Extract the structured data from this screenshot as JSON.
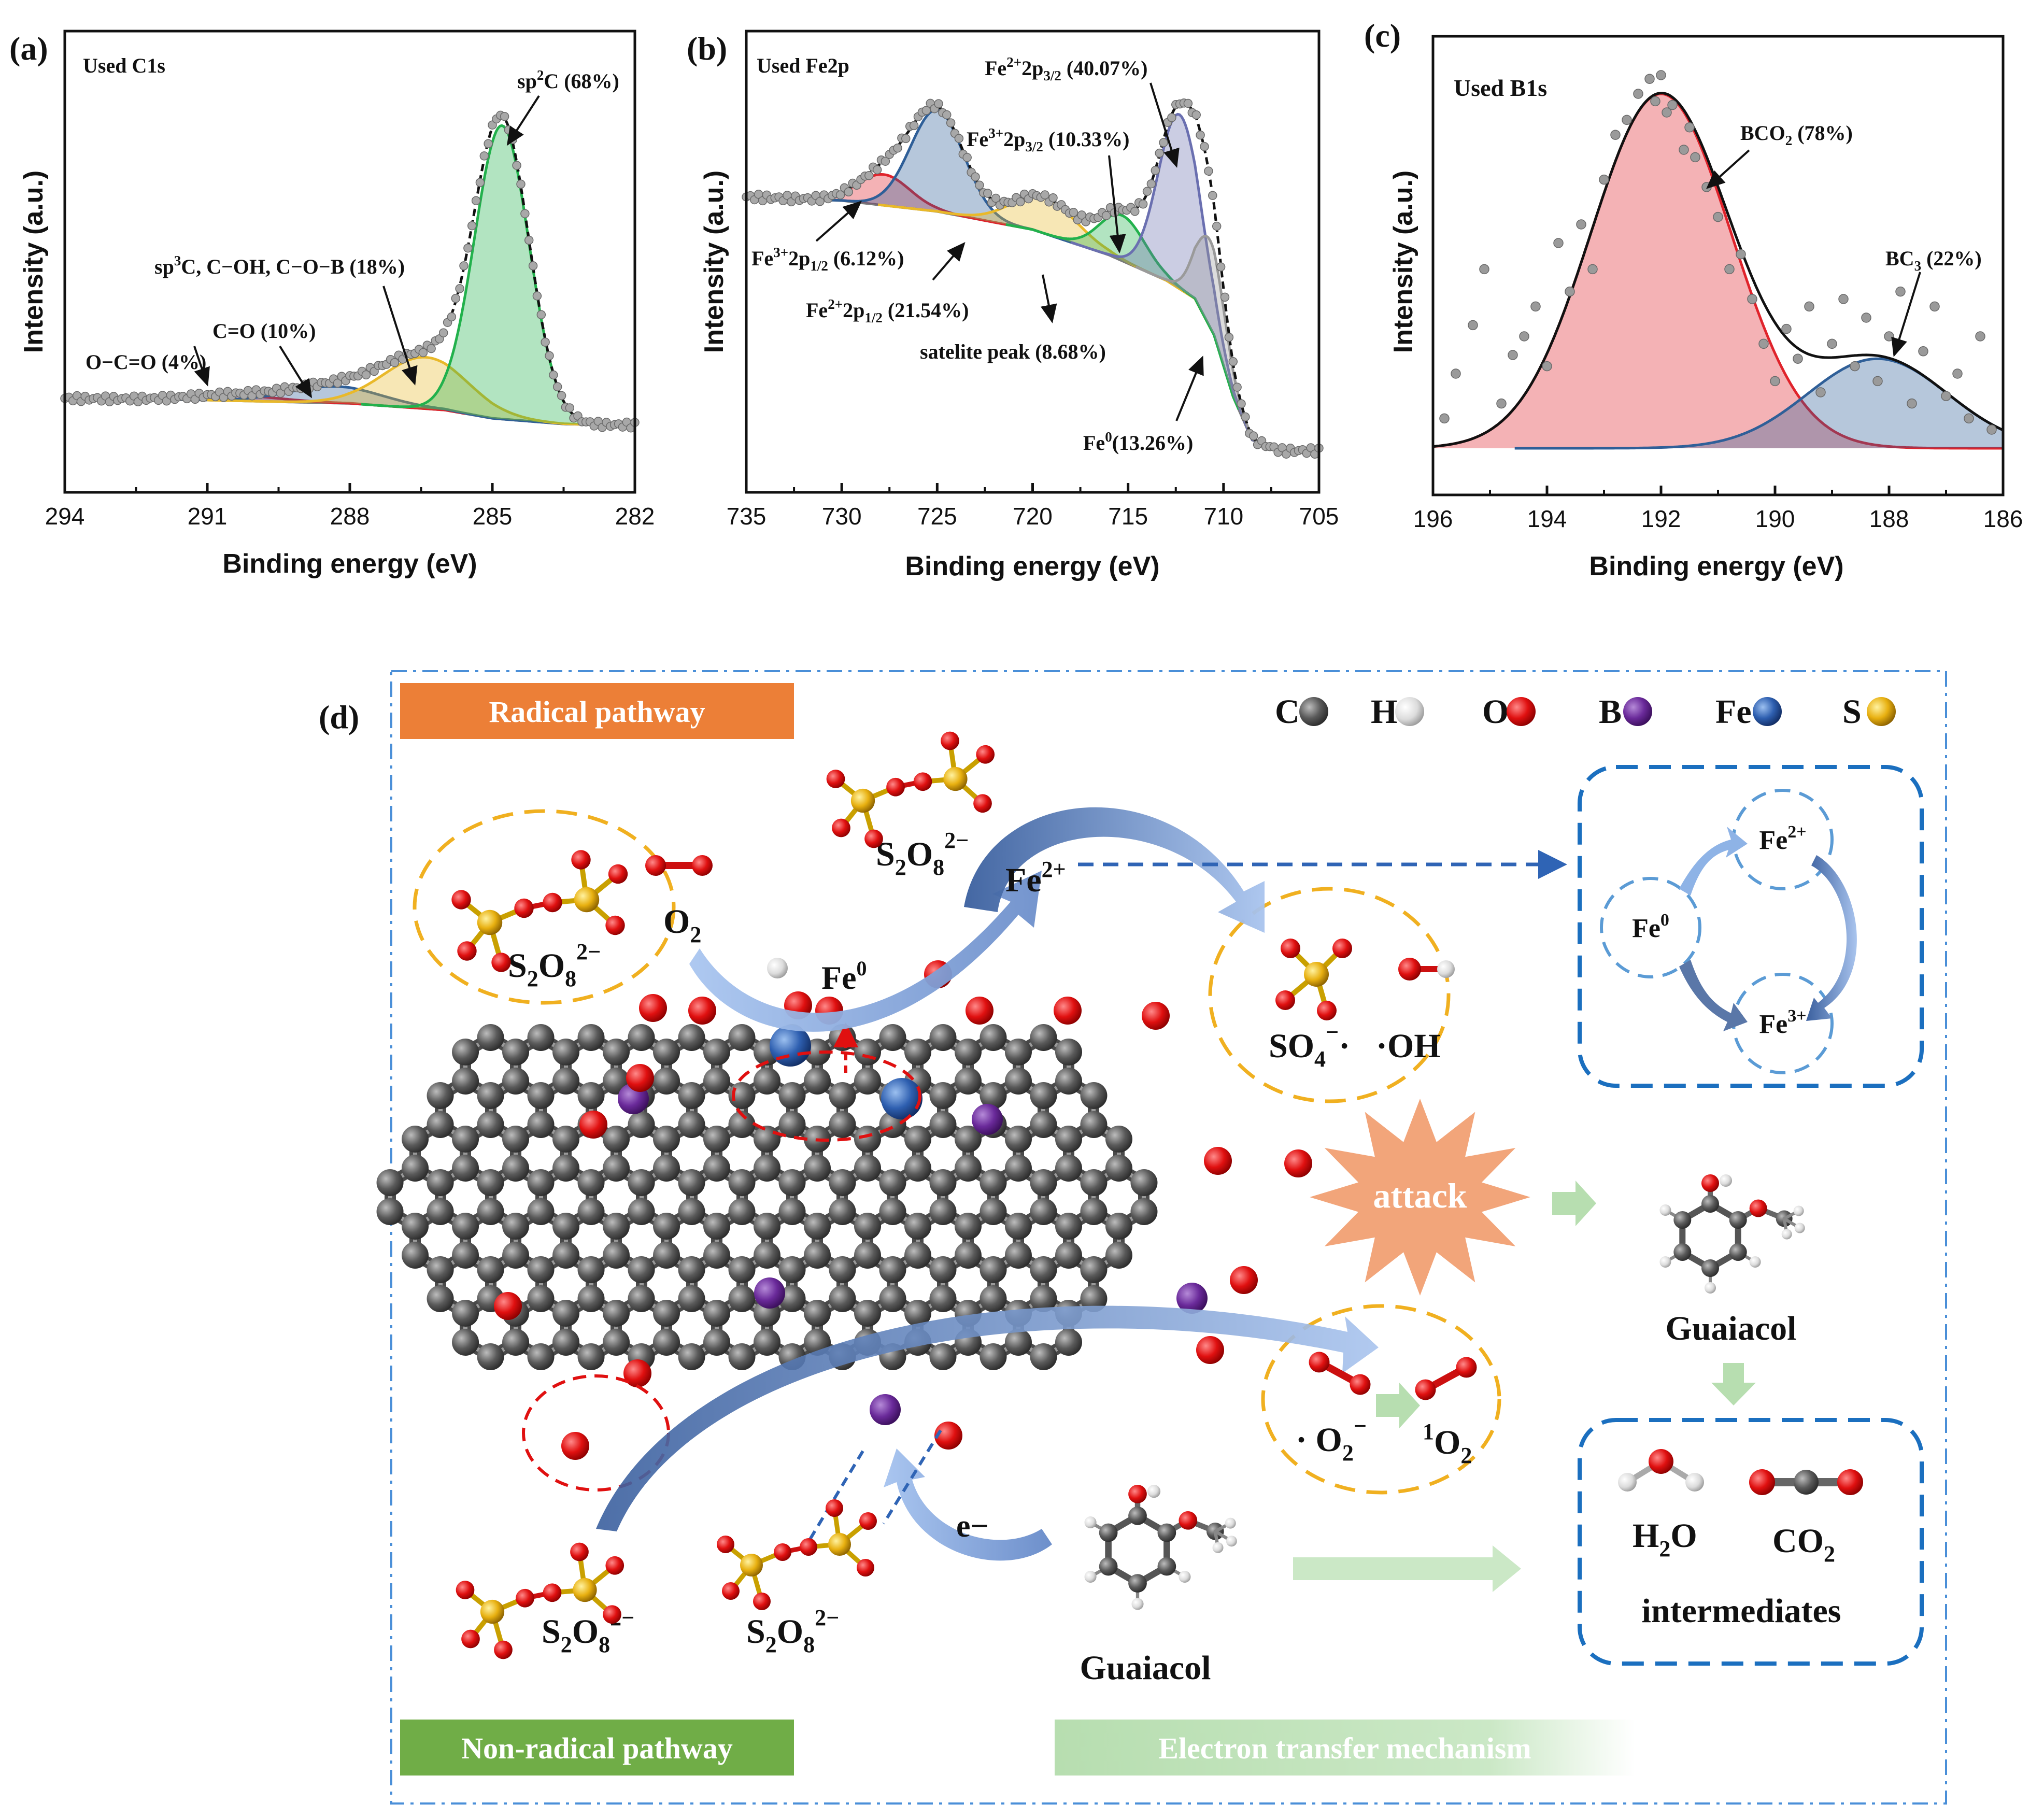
{
  "chart_data": [
    {
      "panel": "(a)",
      "type": "line",
      "title": "Used C1s",
      "xlabel": "Binding energy (eV)",
      "ylabel": "Intensity (a.u.)",
      "xlim": [
        294,
        282
      ],
      "ylim": [
        0,
        100
      ],
      "xticks": [
        "294",
        "291",
        "288",
        "285",
        "282"
      ],
      "background": {
        "x": [
          294,
          291,
          288,
          286,
          285,
          283.5,
          282.6
        ],
        "y": [
          8,
          7.5,
          6.5,
          4.5,
          2,
          0.3,
          0
        ]
      },
      "peaks": [
        {
          "name": "O−C=O (4%)",
          "center": 290.4,
          "height": 1.6,
          "fwhm": 2.2,
          "color": "#e0232b"
        },
        {
          "name": "C=O (10%)",
          "center": 288.3,
          "height": 5.0,
          "fwhm": 2.3,
          "color": "#2f5f98"
        },
        {
          "name": "sp³C, C−OH, C−O−B (18%)",
          "center": 286.4,
          "height": 15.5,
          "fwhm": 2.1,
          "color": "#e9b92a"
        },
        {
          "name": "sp²C (68%)",
          "center": 284.8,
          "height": 88.5,
          "fwhm": 1.35,
          "color": "#22b14c"
        }
      ],
      "labels": {
        "p0": "O−C=O (4%)",
        "p1": "C=O (10%)",
        "p2": "sp",
        "p2sup": "3",
        "p2rest": "C, C−OH, C−O−B (18%)",
        "p3": "sp",
        "p3sup": "2",
        "p3rest": "C (68%)"
      }
    },
    {
      "panel": "(b)",
      "type": "line",
      "title": "Used Fe2p",
      "xlabel": "Binding energy (eV)",
      "ylabel": "Intensity (a.u.)",
      "xlim": [
        735,
        705
      ],
      "ylim": [
        0,
        100
      ],
      "xticks": [
        "735",
        "730",
        "725",
        "720",
        "715",
        "710",
        "705"
      ],
      "background": {
        "x": [
          735,
          730,
          725,
          720,
          716,
          713,
          711.5,
          710.5,
          709.5,
          708.5,
          707,
          705
        ],
        "y": [
          70,
          69,
          66,
          61,
          54,
          47,
          42,
          32,
          15,
          3,
          0,
          0
        ]
      },
      "peaks": [
        {
          "name": "Fe³⁺2p1/2 (6.12%)",
          "center": 727.8,
          "height": 8.5,
          "fwhm": 3.2,
          "color": "#e0232b"
        },
        {
          "name": "Fe²⁺2p1/2 (21.54%)",
          "center": 725.0,
          "height": 28.0,
          "fwhm": 3.3,
          "color": "#2f5f98"
        },
        {
          "name": "satelite peak (8.68%)",
          "center": 719.4,
          "height": 10.0,
          "fwhm": 4.0,
          "color": "#e9b92a"
        },
        {
          "name": "Fe³⁺2p3/2 (10.33%)",
          "center": 715.3,
          "height": 12.5,
          "fwhm": 2.8,
          "color": "#22b14c"
        },
        {
          "name": "Fe²⁺2p3/2 (40.07%)",
          "center": 712.3,
          "height": 48.0,
          "fwhm": 2.6,
          "color": "#6a6fb0"
        },
        {
          "name": "Fe⁰(13.26%)",
          "center": 710.7,
          "height": 24.0,
          "fwhm": 1.8,
          "color": "#9a9a9a"
        }
      ],
      "labels": {
        "p0a": "Fe",
        "p0sup": "3+",
        "p0b": "2p",
        "p0sub": "1/2",
        "p0c": " (6.12%)",
        "p1a": "Fe",
        "p1sup": "2+",
        "p1b": "2p",
        "p1sub": "1/2",
        "p1c": " (21.54%)",
        "p2": "satelite peak (8.68%)",
        "p3a": "Fe",
        "p3sup": "3+",
        "p3b": "2p",
        "p3sub": "3/2",
        "p3c": " (10.33%)",
        "p4a": "Fe",
        "p4sup": "2+",
        "p4b": "2p",
        "p4sub": "3/2",
        "p4c": " (40.07%)",
        "p5a": "Fe",
        "p5sup": "0",
        "p5c": "(13.26%)"
      }
    },
    {
      "panel": "(c)",
      "type": "scatter",
      "title": "Used B1s",
      "xlabel": "Binding energy (eV)",
      "ylabel": "Intensity (a.u.)",
      "xlim": [
        196,
        186
      ],
      "ylim": [
        0,
        100
      ],
      "xticks": [
        "196",
        "194",
        "192",
        "190",
        "188",
        "186"
      ],
      "peaks": [
        {
          "name": "BCO₂ (78%)",
          "center": 192.0,
          "height": 95.0,
          "fwhm": 2.9,
          "color": "#e0232b"
        },
        {
          "name": "BC₃ (22%)",
          "center": 188.2,
          "height": 24.0,
          "fwhm": 2.9,
          "color": "#2f5f98"
        }
      ],
      "points": {
        "x": [
          195.8,
          195.6,
          195.3,
          195.1,
          194.8,
          194.6,
          194.4,
          194.2,
          194.0,
          193.8,
          193.6,
          193.4,
          193.2,
          193.0,
          192.8,
          192.6,
          192.4,
          192.2,
          192.1,
          192.0,
          191.9,
          191.8,
          191.6,
          191.5,
          191.4,
          191.2,
          191.0,
          190.8,
          190.6,
          190.4,
          190.2,
          190.0,
          189.8,
          189.6,
          189.4,
          189.2,
          189.0,
          188.8,
          188.6,
          188.4,
          188.2,
          188.0,
          187.8,
          187.6,
          187.4,
          187.2,
          187.0,
          186.8,
          186.6,
          186.4,
          186.2
        ],
        "y": [
          8,
          20,
          33,
          48,
          12,
          25,
          30,
          38,
          22,
          55,
          42,
          60,
          48,
          72,
          84,
          88,
          95,
          99,
          93,
          100,
          90,
          92,
          80,
          86,
          78,
          70,
          62,
          48,
          52,
          40,
          28,
          18,
          32,
          24,
          38,
          15,
          28,
          40,
          22,
          35,
          18,
          30,
          42,
          12,
          26,
          38,
          14,
          20,
          8,
          30,
          5
        ]
      },
      "labels": {
        "p0a": "BCO",
        "p0sub": "2",
        "p0c": " (78%)",
        "p1a": "BC",
        "p1sub": "3",
        "p1c": " (22%)"
      }
    }
  ],
  "panel_d": {
    "letter": "(d)",
    "radical_pathway": "Radical pathway",
    "non_radical_pathway": "Non-radical pathway",
    "electron_transfer": "Electron transfer mechanism",
    "legend": [
      {
        "label": "C",
        "color": "#555555"
      },
      {
        "label": "H",
        "color": "#e8e8e8"
      },
      {
        "label": "O",
        "color": "#e01010"
      },
      {
        "label": "B",
        "color": "#6a2a9a"
      },
      {
        "label": "Fe",
        "color": "#2e5fb0"
      },
      {
        "label": "S",
        "color": "#e8b010"
      }
    ],
    "s2o8": "S",
    "s2o8_sub1": "2",
    "s2o8_mid": "O",
    "s2o8_sub2": "8",
    "s2o8_sup": "2−",
    "o2": "O",
    "o2_sub": "2",
    "fe2plus": "Fe",
    "fe2plus_sup": "2+",
    "fe0": "Fe",
    "fe0_sup": "0",
    "fe3plus_sup": "3+",
    "so4": "SO",
    "so4_sub": "4",
    "so4_sup": "−",
    "so4_dot": "·",
    "oh": "·OH",
    "attack": "attack",
    "guaiacol": "Guaiacol",
    "superoxide": "· O",
    "superoxide_sub": "2",
    "superoxide_sup": "−",
    "singlet_pre": "1",
    "singlet": "O",
    "singlet_sub": "2",
    "electron": "e−",
    "h2o_a": "H",
    "h2o_sub": "2",
    "h2o_b": "O",
    "co2_a": "CO",
    "co2_sub": "2",
    "intermediates": "intermediates"
  }
}
